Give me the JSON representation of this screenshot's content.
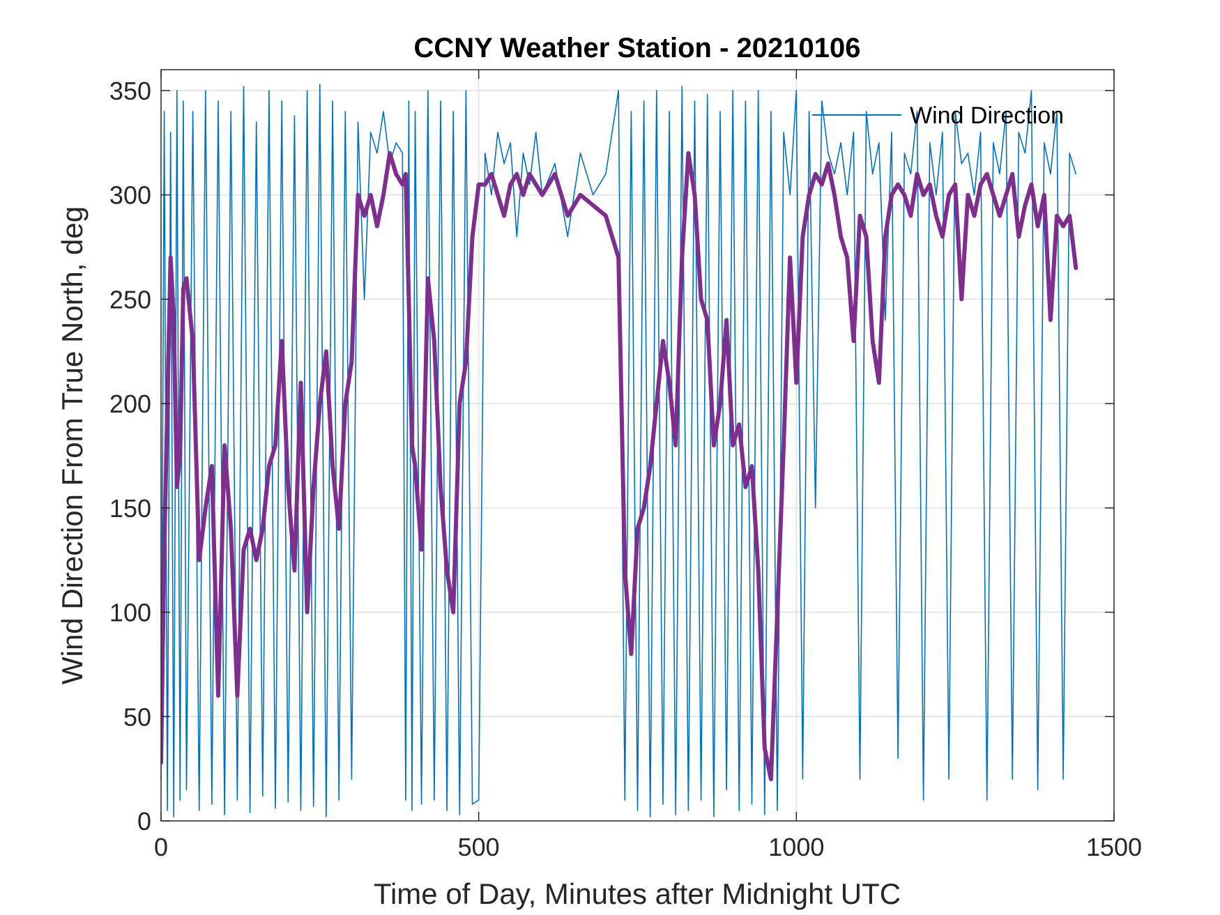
{
  "chart_data": {
    "type": "line",
    "title": "CCNY Weather Station - 20210106",
    "xlabel": "Time of Day, Minutes after Midnight UTC",
    "ylabel": "Wind Direction From True North, deg",
    "xlim": [
      0,
      1500
    ],
    "ylim": [
      0,
      360
    ],
    "xticks": [
      0,
      500,
      1000,
      1500
    ],
    "yticks": [
      0,
      50,
      100,
      150,
      200,
      250,
      300,
      350
    ],
    "grid": true,
    "legend_placement": "top-right",
    "series": [
      {
        "name": "Wind Direction",
        "color": "#0072BD",
        "style": "thin-line",
        "description_of_values": "raw 1-minute readings",
        "x": [
          0,
          5,
          10,
          15,
          20,
          25,
          30,
          35,
          40,
          50,
          60,
          70,
          80,
          90,
          100,
          110,
          120,
          130,
          140,
          150,
          160,
          170,
          180,
          190,
          200,
          210,
          220,
          230,
          240,
          250,
          260,
          270,
          280,
          290,
          300,
          310,
          320,
          330,
          340,
          350,
          360,
          370,
          380,
          385,
          390,
          395,
          400,
          410,
          420,
          430,
          440,
          450,
          460,
          470,
          480,
          490,
          500,
          510,
          520,
          530,
          540,
          550,
          560,
          570,
          580,
          590,
          600,
          620,
          640,
          660,
          680,
          700,
          720,
          730,
          740,
          750,
          760,
          770,
          780,
          790,
          800,
          810,
          820,
          830,
          840,
          850,
          860,
          870,
          880,
          890,
          900,
          910,
          920,
          930,
          940,
          950,
          960,
          970,
          980,
          990,
          1000,
          1010,
          1020,
          1030,
          1040,
          1050,
          1060,
          1070,
          1080,
          1090,
          1100,
          1110,
          1120,
          1130,
          1140,
          1150,
          1160,
          1170,
          1180,
          1190,
          1200,
          1210,
          1220,
          1230,
          1240,
          1250,
          1260,
          1270,
          1280,
          1290,
          1300,
          1310,
          1320,
          1330,
          1340,
          1350,
          1360,
          1370,
          1380,
          1390,
          1400,
          1410,
          1420,
          1430,
          1440
        ],
        "y": [
          20,
          340,
          5,
          330,
          2,
          350,
          10,
          345,
          15,
          340,
          5,
          350,
          8,
          345,
          3,
          340,
          10,
          352,
          4,
          335,
          12,
          350,
          6,
          345,
          9,
          338,
          5,
          350,
          7,
          353,
          2,
          345,
          10,
          340,
          20,
          335,
          250,
          330,
          320,
          340,
          315,
          325,
          320,
          10,
          345,
          5,
          340,
          8,
          350,
          10,
          345,
          5,
          340,
          3,
          350,
          8,
          10,
          320,
          300,
          330,
          315,
          325,
          280,
          320,
          305,
          330,
          300,
          315,
          280,
          320,
          300,
          310,
          350,
          10,
          340,
          5,
          345,
          2,
          350,
          8,
          340,
          3,
          352,
          5,
          345,
          10,
          348,
          2,
          340,
          15,
          350,
          5,
          345,
          8,
          350,
          3,
          340,
          5,
          330,
          300,
          350,
          20,
          340,
          150,
          345,
          320,
          310,
          325,
          300,
          330,
          20,
          340,
          310,
          325,
          240,
          330,
          30,
          320,
          310,
          340,
          10,
          325,
          300,
          330,
          20,
          340,
          315,
          320,
          300,
          330,
          10,
          325,
          310,
          340,
          20,
          330,
          320,
          350,
          15,
          325,
          310,
          340,
          20,
          320,
          310
        ]
      },
      {
        "name": "",
        "color": "#7E2F8E",
        "style": "thick-line",
        "description_of_values": "moving average",
        "x": [
          0,
          5,
          10,
          15,
          20,
          25,
          30,
          35,
          40,
          50,
          60,
          70,
          80,
          90,
          100,
          110,
          120,
          130,
          140,
          150,
          160,
          170,
          180,
          190,
          200,
          210,
          220,
          230,
          240,
          250,
          260,
          270,
          280,
          290,
          300,
          310,
          320,
          330,
          340,
          350,
          360,
          370,
          380,
          385,
          390,
          395,
          400,
          410,
          420,
          430,
          440,
          450,
          460,
          470,
          480,
          490,
          500,
          510,
          520,
          530,
          540,
          550,
          560,
          570,
          580,
          590,
          600,
          620,
          640,
          660,
          680,
          700,
          720,
          730,
          740,
          750,
          760,
          770,
          780,
          790,
          800,
          810,
          820,
          830,
          840,
          850,
          860,
          870,
          880,
          890,
          900,
          910,
          920,
          930,
          940,
          950,
          960,
          970,
          980,
          990,
          1000,
          1010,
          1020,
          1030,
          1040,
          1050,
          1060,
          1070,
          1080,
          1090,
          1100,
          1110,
          1120,
          1130,
          1140,
          1150,
          1160,
          1170,
          1180,
          1190,
          1200,
          1210,
          1220,
          1230,
          1240,
          1250,
          1260,
          1270,
          1280,
          1290,
          1300,
          1310,
          1320,
          1330,
          1340,
          1350,
          1360,
          1370,
          1380,
          1390,
          1400,
          1410,
          1420,
          1430,
          1440
        ],
        "y": [
          28,
          130,
          200,
          270,
          240,
          160,
          175,
          255,
          260,
          230,
          125,
          150,
          170,
          60,
          180,
          140,
          60,
          130,
          140,
          125,
          140,
          170,
          180,
          230,
          160,
          120,
          210,
          100,
          160,
          200,
          225,
          170,
          140,
          200,
          220,
          300,
          290,
          300,
          285,
          300,
          320,
          310,
          305,
          310,
          250,
          180,
          170,
          130,
          260,
          230,
          160,
          120,
          100,
          200,
          220,
          280,
          305,
          305,
          310,
          300,
          290,
          305,
          310,
          300,
          310,
          305,
          300,
          310,
          290,
          300,
          295,
          290,
          270,
          120,
          80,
          140,
          150,
          170,
          200,
          230,
          210,
          180,
          270,
          320,
          300,
          250,
          240,
          180,
          200,
          240,
          180,
          190,
          160,
          170,
          120,
          35,
          20,
          100,
          180,
          270,
          210,
          280,
          300,
          310,
          305,
          315,
          300,
          280,
          270,
          230,
          290,
          280,
          230,
          210,
          280,
          300,
          305,
          300,
          290,
          310,
          300,
          305,
          290,
          280,
          300,
          305,
          250,
          300,
          290,
          305,
          310,
          300,
          290,
          300,
          310,
          280,
          295,
          305,
          285,
          300,
          240,
          290,
          285,
          290,
          265
        ]
      }
    ]
  }
}
